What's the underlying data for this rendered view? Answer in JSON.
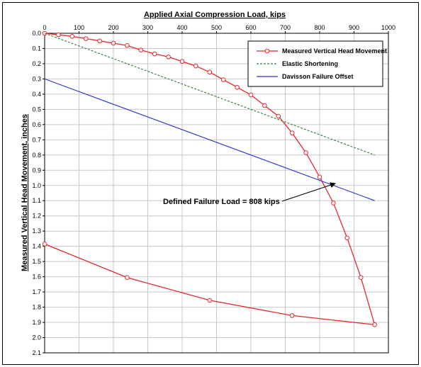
{
  "chart_data": {
    "type": "line",
    "title": "",
    "xlabel": "Applied Axial Compression Load, kips",
    "ylabel": "Measured Vertical Head Movement, inches",
    "xlim": [
      0,
      1000
    ],
    "ylim": [
      0,
      2.1
    ],
    "y_inverted": true,
    "x_ticks": [
      "0",
      "100",
      "200",
      "300",
      "400",
      "500",
      "600",
      "700",
      "800",
      "900",
      "1000"
    ],
    "y_ticks": [
      "0.0",
      "0.1",
      "0.2",
      "0.3",
      "0.4",
      "0.5",
      "0.6",
      "0.7",
      "0.8",
      "0.9",
      "1.0",
      "1.1",
      "1.2",
      "1.3",
      "1.4",
      "1.5",
      "1.6",
      "1.7",
      "1.8",
      "1.9",
      "2.0",
      "2.1"
    ],
    "grid": true,
    "legend_position": "top-right",
    "series": [
      {
        "name": "Measured Vertical Head Movement",
        "color": "#e8262b",
        "style": "solid-with-circle-markers",
        "points": [
          [
            0,
            0.0
          ],
          [
            40,
            0.01
          ],
          [
            80,
            0.02
          ],
          [
            120,
            0.035
          ],
          [
            160,
            0.05
          ],
          [
            200,
            0.065
          ],
          [
            240,
            0.08
          ],
          [
            280,
            0.11
          ],
          [
            320,
            0.135
          ],
          [
            360,
            0.155
          ],
          [
            400,
            0.185
          ],
          [
            440,
            0.215
          ],
          [
            480,
            0.255
          ],
          [
            520,
            0.305
          ],
          [
            560,
            0.355
          ],
          [
            600,
            0.405
          ],
          [
            640,
            0.475
          ],
          [
            680,
            0.545
          ],
          [
            720,
            0.655
          ],
          [
            760,
            0.785
          ],
          [
            800,
            0.945
          ],
          [
            840,
            1.115
          ],
          [
            880,
            1.345
          ],
          [
            920,
            1.605
          ],
          [
            960,
            1.915
          ],
          [
            720,
            1.855
          ],
          [
            480,
            1.755
          ],
          [
            240,
            1.605
          ],
          [
            0,
            1.385
          ]
        ]
      },
      {
        "name": "Elastic Shortening",
        "color": "#2e7d32",
        "style": "dashed",
        "points": [
          [
            0,
            0.0
          ],
          [
            960,
            0.8
          ]
        ]
      },
      {
        "name": "Davisson Failure Offset",
        "color": "#2a35d4",
        "style": "solid",
        "points": [
          [
            0,
            0.3
          ],
          [
            960,
            1.1
          ]
        ]
      }
    ],
    "annotation": {
      "text": "Defined Failure Load = 808 kips",
      "x": 808,
      "y": 0.975
    }
  }
}
